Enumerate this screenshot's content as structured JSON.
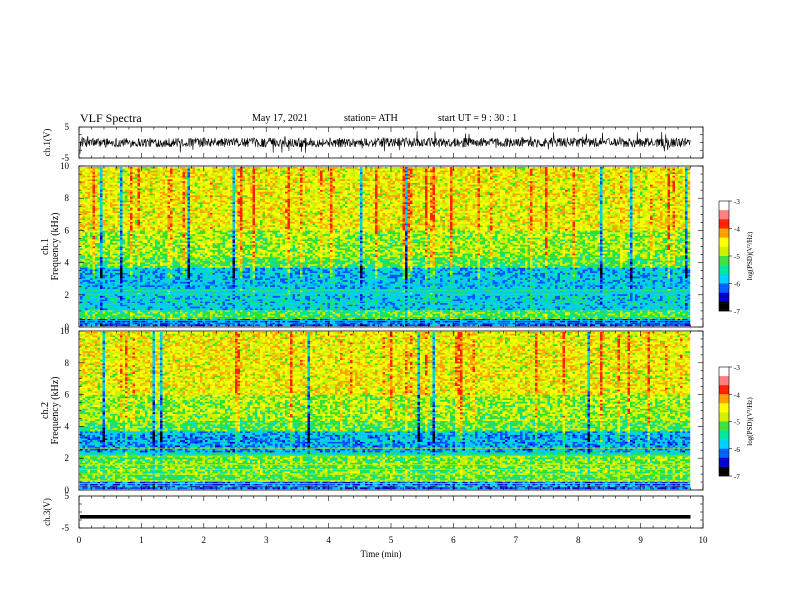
{
  "header": {
    "title": "VLF  Spectra",
    "date": "May 17, 2021",
    "station": "station= ATH",
    "start": "start  UT  =   9  : 30 : 1"
  },
  "chart_data": [
    {
      "type": "line",
      "panel": "ch1-waveform",
      "ylabel": "ch.1(V)",
      "ylim": [
        -5,
        5
      ],
      "yticks": [
        "5",
        "-5"
      ],
      "description_values": {
        "baseline_V": 0,
        "typical_amplitude_V": 1.5
      }
    },
    {
      "type": "heatmap",
      "panel": "ch1-spectrogram",
      "ylabel": "ch.1\nFrequency (kHz)",
      "ylabel_lines": [
        "ch.1",
        "Frequency  (kHz)"
      ],
      "ylim": [
        0,
        10
      ],
      "yticks": [
        0,
        2,
        4,
        6,
        8,
        10
      ],
      "colorbar": {
        "label": "log(PSD)(V²/Hz)",
        "range": [
          -7,
          -3
        ],
        "ticks": [
          -3,
          -4,
          -5,
          -6,
          -7
        ]
      }
    },
    {
      "type": "heatmap",
      "panel": "ch2-spectrogram",
      "ylabel_lines": [
        "ch.2",
        "Frequency  (kHz)"
      ],
      "ylim": [
        0,
        10
      ],
      "yticks": [
        0,
        2,
        4,
        6,
        8,
        10
      ],
      "colorbar": {
        "label": "log(PSD)(V²/Hz)",
        "range": [
          -7,
          -3
        ],
        "ticks": [
          -3,
          -4,
          -5,
          -6,
          -7
        ]
      }
    },
    {
      "type": "line",
      "panel": "ch3-waveform",
      "ylabel": "ch.3(V)",
      "ylim": [
        -5,
        5
      ],
      "yticks": [
        "5",
        "-5"
      ],
      "description_values": {
        "baseline_V": -1.5
      }
    }
  ],
  "xaxis": {
    "label": "Time  (min)",
    "xlim": [
      0,
      10
    ],
    "ticks": [
      0,
      1,
      2,
      3,
      4,
      5,
      6,
      7,
      8,
      9,
      10
    ],
    "data_end": 9.8
  },
  "colors": {
    "colormap": [
      "#000000",
      "#0000c8",
      "#0050ff",
      "#00c8ff",
      "#00e0b0",
      "#30e030",
      "#c8f000",
      "#ffff00",
      "#ffa000",
      "#ff2000",
      "#ffffff"
    ]
  }
}
